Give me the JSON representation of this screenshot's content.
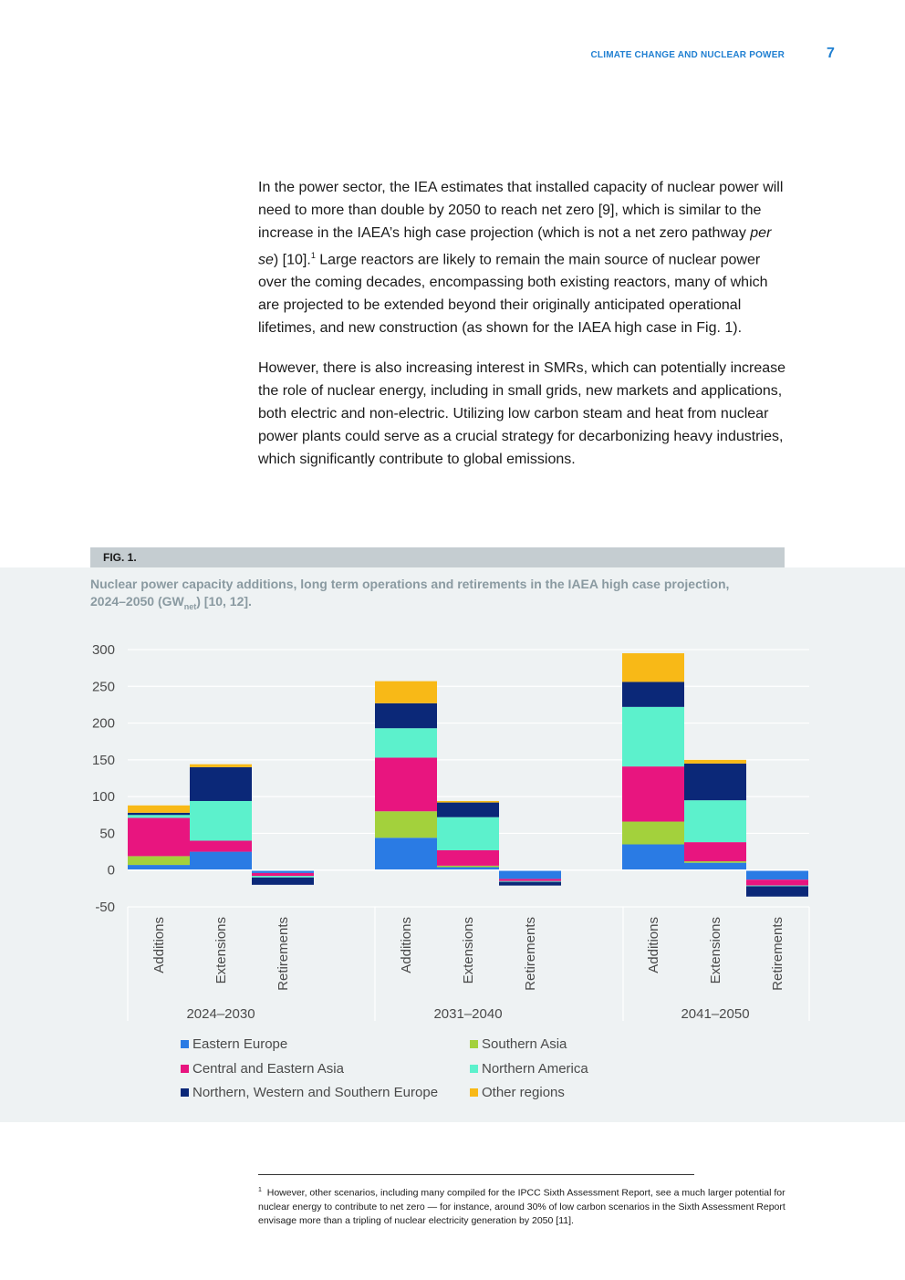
{
  "header": {
    "running_title": "CLIMATE CHANGE AND NUCLEAR POWER",
    "page_number": "7"
  },
  "body": {
    "p1_a": "In the power sector, the IEA estimates that installed capacity of nuclear power will need to more than double by 2050 to reach net zero [9], which is similar to the increase in the IAEA’s high case projection (which is not a net zero pathway ",
    "p1_italic": "per se",
    "p1_b": ") [10].",
    "p1_sup": "1",
    "p1_c": " Large reactors are likely to remain the main source of nuclear power over the coming decades, encompassing both existing reactors, many of which are projected to be extended beyond their originally anticipated operational lifetimes, and new construction (as shown for the IAEA high case in Fig. 1).",
    "p2": "However, there is also increasing interest in SMRs, which can potentially increase the role of nuclear energy, including in small grids, new markets and applications, both electric and non-electric. Utilizing low carbon steam and heat from nuclear power plants could serve as a crucial strategy for decarbonizing heavy industries, which significantly contribute to global emissions."
  },
  "figure": {
    "label": "FIG. 1.",
    "caption_a": "Nuclear power capacity additions, long term operations and retirements in the IAEA high case projection, 2024–2050 (GW",
    "caption_sub": "net",
    "caption_b": ") [10, 12]."
  },
  "chart_data": {
    "type": "bar",
    "stacked": true,
    "ylim": [
      -50,
      300
    ],
    "yticks": [
      300,
      250,
      200,
      150,
      100,
      50,
      0,
      -50
    ],
    "grid": true,
    "legend_position": "bottom",
    "groups": [
      "2024–2030",
      "2031–2040",
      "2041–2050"
    ],
    "bar_types": [
      "Additions",
      "Extensions",
      "Retirements"
    ],
    "colors": {
      "Eastern Europe": "#2a7be4",
      "Southern Asia": "#a3d13c",
      "Central and Eastern Asia": "#e8157f",
      "Northern America": "#5cf1cc",
      "Northern, Western and Southern Europe": "#0b2878",
      "Other regions": "#f8b917"
    },
    "series": [
      {
        "name": "Eastern Europe",
        "values": [
          [
            7,
            25,
            -4
          ],
          [
            44,
            4,
            -12
          ],
          [
            35,
            10,
            -13
          ]
        ]
      },
      {
        "name": "Southern Asia",
        "values": [
          [
            12,
            0,
            0
          ],
          [
            36,
            2,
            0
          ],
          [
            31,
            2,
            0
          ]
        ]
      },
      {
        "name": "Central and Eastern Asia",
        "values": [
          [
            52,
            15,
            -4
          ],
          [
            73,
            21,
            -3
          ],
          [
            75,
            26,
            -8
          ]
        ]
      },
      {
        "name": "Northern America",
        "values": [
          [
            4,
            54,
            -2
          ],
          [
            40,
            45,
            -1
          ],
          [
            81,
            57,
            -1
          ]
        ]
      },
      {
        "name": "Northern, Western and Southern Europe",
        "values": [
          [
            3,
            46,
            -10
          ],
          [
            34,
            20,
            -5
          ],
          [
            34,
            50,
            -14
          ]
        ]
      },
      {
        "name": "Other regions",
        "values": [
          [
            10,
            4,
            0
          ],
          [
            30,
            2,
            0
          ],
          [
            39,
            5,
            0
          ]
        ]
      }
    ]
  },
  "legend": [
    {
      "label": "Eastern Europe",
      "color": "#2a7be4"
    },
    {
      "label": "Southern Asia",
      "color": "#a3d13c"
    },
    {
      "label": "Central and Eastern Asia",
      "color": "#e8157f"
    },
    {
      "label": "Northern America",
      "color": "#5cf1cc"
    },
    {
      "label": "Northern, Western and Southern Europe",
      "color": "#0b2878"
    },
    {
      "label": "Other regions",
      "color": "#f8b917"
    }
  ],
  "footnote": {
    "marker": "1",
    "text": "However, other scenarios, including many compiled for the IPCC Sixth Assessment Report, see a much larger potential for nuclear energy to contribute to net zero — for instance, around 30% of low carbon scenarios in the Sixth Assessment Report envisage more than a tripling of nuclear electricity generation by 2050 [11]."
  }
}
